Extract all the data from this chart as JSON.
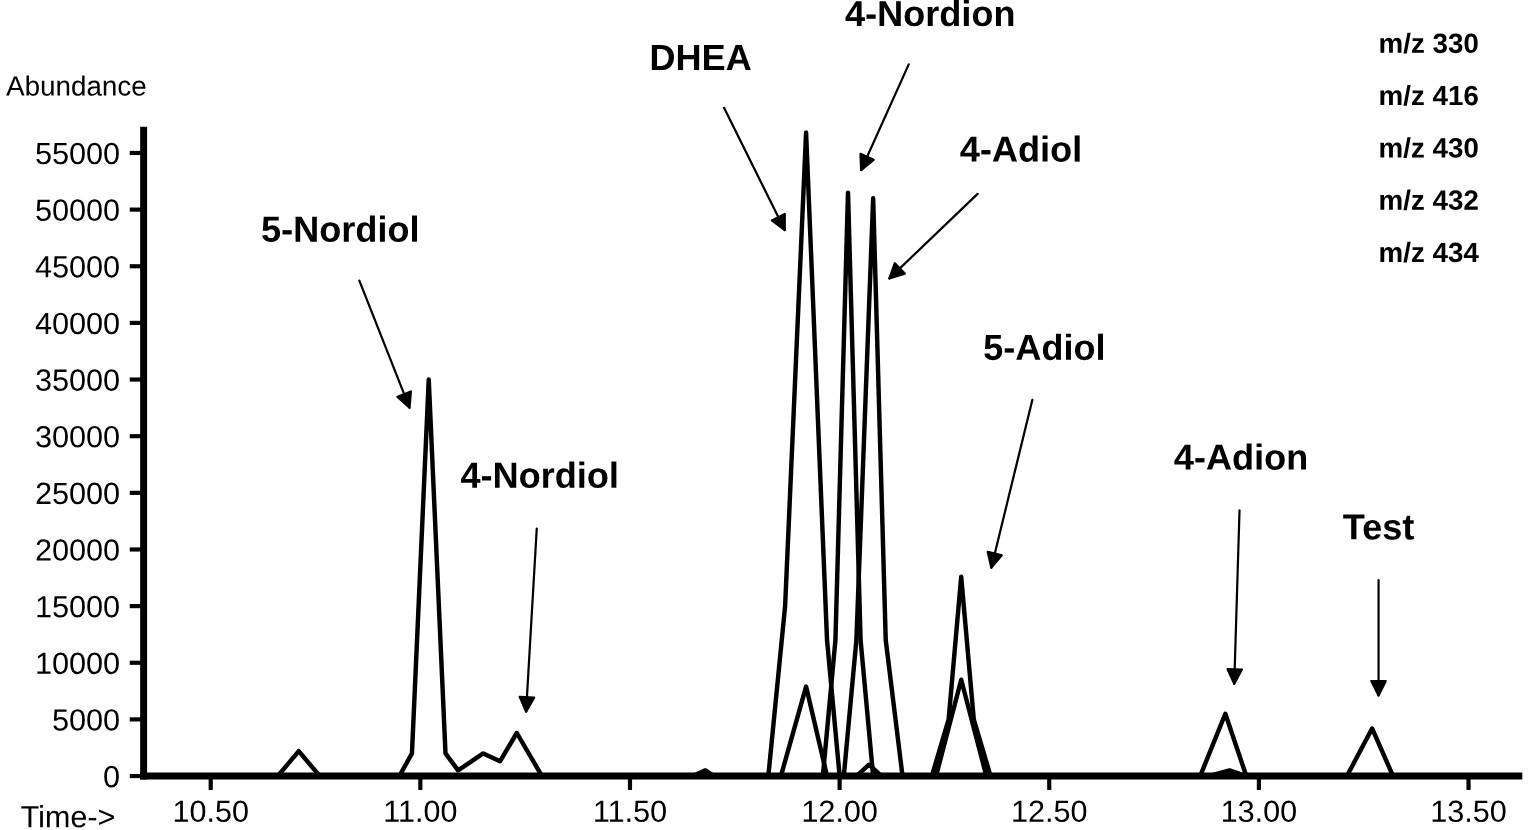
{
  "chart_data": {
    "type": "line",
    "xlabel": "Time->",
    "ylabel": "Abundance",
    "xlim": [
      10.34,
      13.62
    ],
    "xticks": [
      {
        "value": 10.5,
        "label": "10.50"
      },
      {
        "value": 11.0,
        "label": "11.00"
      },
      {
        "value": 11.5,
        "label": "11.50"
      },
      {
        "value": 12.0,
        "label": "12.00"
      },
      {
        "value": 12.5,
        "label": "12.50"
      },
      {
        "value": 13.0,
        "label": "13.00"
      },
      {
        "value": 13.5,
        "label": "13.50"
      }
    ],
    "ylim": [
      0,
      57000
    ],
    "yticks": [
      0,
      5000,
      10000,
      15000,
      20000,
      25000,
      30000,
      35000,
      40000,
      45000,
      50000,
      55000
    ],
    "grid": false,
    "legend": false,
    "marker": "none",
    "line_style": "solid",
    "series": [
      {
        "color": "#000000",
        "x": [
          10.34,
          10.66,
          10.71,
          10.76,
          10.95,
          10.98,
          11.02,
          11.06,
          11.09,
          11.15,
          11.19,
          11.23,
          11.29,
          11.65,
          11.68,
          11.7,
          13.62
        ],
        "values": [
          0,
          0,
          2200,
          0,
          0,
          2000,
          35000,
          2000,
          500,
          2000,
          1300,
          3800,
          0,
          0,
          500,
          0,
          0
        ]
      },
      {
        "color": "#000000",
        "x": [
          10.34,
          11.83,
          11.87,
          11.92,
          11.97,
          12.0,
          12.86,
          12.92,
          12.97,
          13.21,
          13.27,
          13.32,
          13.62
        ],
        "values": [
          0,
          0,
          15000,
          56800,
          12000,
          0,
          0,
          5500,
          0,
          0,
          4200,
          0,
          0
        ]
      },
      {
        "color": "#000000",
        "x": [
          10.34,
          11.96,
          11.99,
          12.02,
          12.05,
          12.08,
          13.62
        ],
        "values": [
          0,
          0,
          12000,
          51500,
          12000,
          0,
          0
        ]
      },
      {
        "color": "#000000",
        "x": [
          10.34,
          12.01,
          12.04,
          12.08,
          12.11,
          12.15,
          12.22,
          12.26,
          12.29,
          12.32,
          12.36,
          13.62
        ],
        "values": [
          0,
          0,
          12000,
          51000,
          12000,
          0,
          0,
          5000,
          17600,
          5000,
          0,
          0
        ]
      },
      {
        "color": "#000000",
        "x": [
          10.34,
          11.86,
          11.92,
          11.97,
          12.04,
          12.07,
          12.1,
          12.23,
          12.29,
          12.35,
          12.88,
          12.93,
          12.97,
          13.62
        ],
        "values": [
          0,
          0,
          7900,
          0,
          0,
          1000,
          0,
          0,
          8500,
          0,
          0,
          500,
          0,
          0
        ]
      }
    ],
    "annotations": [
      "5-Nordiol",
      "4-Nordiol",
      "DHEA",
      "4-Nordion",
      "4-Adiol",
      "5-Adiol",
      "4-Adion",
      "Test",
      "m/z 330",
      "m/z 416",
      "m/z 430",
      "m/z 432",
      "m/z 434"
    ]
  }
}
